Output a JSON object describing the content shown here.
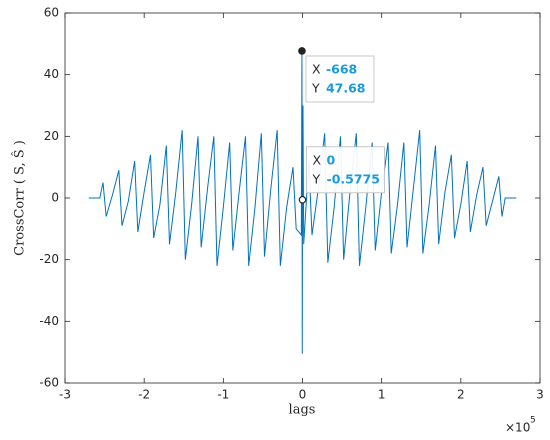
{
  "chart_data": {
    "type": "line",
    "xlabel": "lags",
    "ylabel": "CrossCorr ( S, Ŝ )",
    "x_multiplier": {
      "base": "×10",
      "exponent": "5"
    },
    "xlim": [
      -300000,
      300000
    ],
    "xticks": [
      {
        "value": -300000,
        "label": "-3"
      },
      {
        "value": -200000,
        "label": "-2"
      },
      {
        "value": -100000,
        "label": "-1"
      },
      {
        "value": 0,
        "label": "0"
      },
      {
        "value": 100000,
        "label": "1"
      },
      {
        "value": 200000,
        "label": "2"
      },
      {
        "value": 300000,
        "label": "3"
      }
    ],
    "ylim": [
      -60,
      60
    ],
    "yticks": [
      -60,
      -40,
      -20,
      0,
      20,
      40,
      60
    ],
    "grid": false,
    "series": [
      {
        "color": "#0072bd",
        "x": [
          -270000,
          -256000,
          -252000,
          -248000,
          -240000,
          -232000,
          -228000,
          -220000,
          -212000,
          -208000,
          -200000,
          -192000,
          -188000,
          -180000,
          -172000,
          -168000,
          -160000,
          -152000,
          -148000,
          -140000,
          -132000,
          -128000,
          -120000,
          -112000,
          -108000,
          -100000,
          -92000,
          -88000,
          -80000,
          -72000,
          -68000,
          -60000,
          -52000,
          -48000,
          -40000,
          -32000,
          -28000,
          -20000,
          -12000,
          -8000,
          -1500,
          -668,
          -300,
          0,
          600,
          1500,
          8000,
          12000,
          20000,
          28000,
          32000,
          40000,
          48000,
          52000,
          60000,
          68000,
          72000,
          80000,
          88000,
          92000,
          100000,
          108000,
          112000,
          120000,
          128000,
          132000,
          140000,
          148000,
          152000,
          160000,
          168000,
          172000,
          180000,
          188000,
          192000,
          200000,
          208000,
          212000,
          220000,
          228000,
          232000,
          240000,
          248000,
          252000,
          256000,
          270000
        ],
        "values": [
          0,
          0,
          5,
          -6,
          1,
          9,
          -9,
          -1,
          12,
          -11,
          2,
          14,
          -13,
          -2,
          17,
          -15,
          2,
          22,
          -20,
          -2,
          20,
          -16,
          3,
          20,
          -22,
          -3,
          18,
          -17,
          2,
          20,
          -22,
          -3,
          21,
          -19,
          3,
          22,
          -22,
          -3,
          10,
          -10,
          -12,
          47.68,
          -50.5,
          -0.5775,
          30,
          -15,
          12,
          -12,
          3,
          21,
          -21,
          -3,
          20,
          -20,
          2,
          21,
          -22,
          -3,
          18,
          -17,
          2,
          18,
          -18,
          -2,
          18,
          -16,
          3,
          22,
          -18,
          -2,
          17,
          -15,
          2,
          14,
          -13,
          -2,
          12,
          -11,
          1,
          10,
          -9,
          -1,
          7,
          -6,
          0,
          0
        ]
      }
    ],
    "annotations": [
      {
        "x_label": "X",
        "x": -668,
        "y_label": "Y",
        "y": 47.68
      },
      {
        "x_label": "X",
        "x": 0,
        "y_label": "Y",
        "y": -0.5775
      }
    ]
  }
}
